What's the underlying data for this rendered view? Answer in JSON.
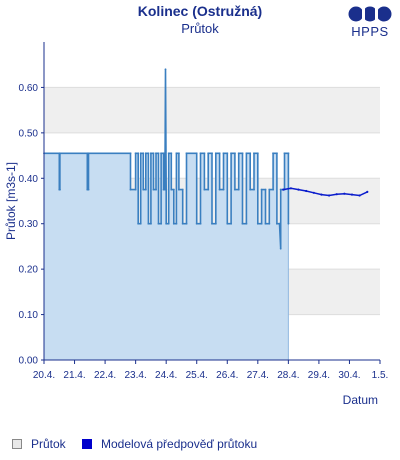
{
  "header": {
    "title": "Kolinec (Ostružná)",
    "subtitle": "Průtok",
    "logo_text": "HPPS"
  },
  "colors": {
    "text": "#1a2f8c",
    "observed": "#3a7fc0",
    "observed_fill": "#c7ddf2",
    "model": "#0a1ccc",
    "band": "#efefef"
  },
  "legend": {
    "observed": "Průtok",
    "model": "Modelová předpověď průtoku"
  },
  "chart_data": {
    "type": "line",
    "xlabel": "Datum",
    "ylabel": "Průtok [m3s-1]",
    "ylim": [
      0,
      0.7
    ],
    "xlim": [
      "2021-04-20",
      "2021-05-01"
    ],
    "x_tick_labels": [
      "20.4.",
      "21.4.",
      "22.4.",
      "23.4.",
      "24.4.",
      "25.4.",
      "26.4.",
      "27.4.",
      "28.4.",
      "29.4.",
      "30.4.",
      "1.5."
    ],
    "y_tick_labels": [
      "0.00",
      "0.10",
      "0.20",
      "0.30",
      "0.40",
      "0.50",
      "0.60"
    ],
    "grid": "horizontal bands",
    "legend_position": "bottom",
    "series": [
      {
        "name": "Průtok",
        "style": "area",
        "x": [
          "2021-04-20T00:00",
          "2021-04-20T12:00",
          "2021-04-20T12:00",
          "2021-04-20T12:30",
          "2021-04-20T12:30",
          "2021-04-21T10:00",
          "2021-04-21T10:00",
          "2021-04-21T11:00",
          "2021-04-21T11:00",
          "2021-04-22T20:00",
          "2021-04-22T20:00",
          "2021-04-23T00:00",
          "2021-04-23T00:00",
          "2021-04-23T02:00",
          "2021-04-23T02:00",
          "2021-04-23T04:00",
          "2021-04-23T04:00",
          "2021-04-23T06:00",
          "2021-04-23T06:00",
          "2021-04-23T08:00",
          "2021-04-23T08:00",
          "2021-04-23T10:00",
          "2021-04-23T10:00",
          "2021-04-23T12:00",
          "2021-04-23T12:00",
          "2021-04-23T14:00",
          "2021-04-23T14:00",
          "2021-04-23T16:00",
          "2021-04-23T16:00",
          "2021-04-23T18:00",
          "2021-04-23T18:00",
          "2021-04-23T20:00",
          "2021-04-23T20:00",
          "2021-04-23T22:00",
          "2021-04-23T22:00",
          "2021-04-23T23:00",
          "2021-04-23T23:30",
          "2021-04-24T00:00",
          "2021-04-24T00:00",
          "2021-04-24T02:00",
          "2021-04-24T02:00",
          "2021-04-24T04:00",
          "2021-04-24T04:00",
          "2021-04-24T06:00",
          "2021-04-24T06:00",
          "2021-04-24T08:00",
          "2021-04-24T08:00",
          "2021-04-24T10:00",
          "2021-04-24T10:00",
          "2021-04-24T13:00",
          "2021-04-24T13:00",
          "2021-04-24T16:00",
          "2021-04-24T16:00",
          "2021-04-25T00:00",
          "2021-04-25T00:00",
          "2021-04-25T03:00",
          "2021-04-25T03:00",
          "2021-04-25T06:00",
          "2021-04-25T06:00",
          "2021-04-25T09:00",
          "2021-04-25T09:00",
          "2021-04-25T12:00",
          "2021-04-25T12:00",
          "2021-04-25T15:00",
          "2021-04-25T15:00",
          "2021-04-25T18:00",
          "2021-04-25T18:00",
          "2021-04-25T21:00",
          "2021-04-25T21:00",
          "2021-04-26T00:00",
          "2021-04-26T00:00",
          "2021-04-26T03:00",
          "2021-04-26T03:00",
          "2021-04-26T06:00",
          "2021-04-26T06:00",
          "2021-04-26T09:00",
          "2021-04-26T09:00",
          "2021-04-26T12:00",
          "2021-04-26T12:00",
          "2021-04-26T15:00",
          "2021-04-26T15:00",
          "2021-04-26T18:00",
          "2021-04-26T18:00",
          "2021-04-26T21:00",
          "2021-04-26T21:00",
          "2021-04-27T00:00",
          "2021-04-27T00:00",
          "2021-04-27T03:00",
          "2021-04-27T03:00",
          "2021-04-27T06:00",
          "2021-04-27T06:00",
          "2021-04-27T09:00",
          "2021-04-27T09:00",
          "2021-04-27T12:00",
          "2021-04-27T12:00",
          "2021-04-27T15:00",
          "2021-04-27T15:00",
          "2021-04-27T17:00",
          "2021-04-27T18:00",
          "2021-04-27T18:00",
          "2021-04-27T21:00",
          "2021-04-27T21:00",
          "2021-04-28T00:00",
          "2021-04-28T00:00"
        ],
        "y": [
          0.455,
          0.455,
          0.375,
          0.375,
          0.455,
          0.455,
          0.375,
          0.375,
          0.455,
          0.455,
          0.375,
          0.375,
          0.455,
          0.455,
          0.3,
          0.3,
          0.455,
          0.455,
          0.375,
          0.375,
          0.455,
          0.455,
          0.3,
          0.3,
          0.455,
          0.455,
          0.375,
          0.375,
          0.455,
          0.455,
          0.3,
          0.3,
          0.455,
          0.455,
          0.375,
          0.375,
          0.64,
          0.375,
          0.3,
          0.3,
          0.455,
          0.455,
          0.375,
          0.375,
          0.3,
          0.3,
          0.455,
          0.455,
          0.375,
          0.375,
          0.3,
          0.3,
          0.455,
          0.455,
          0.3,
          0.3,
          0.455,
          0.455,
          0.375,
          0.375,
          0.455,
          0.455,
          0.3,
          0.3,
          0.455,
          0.455,
          0.375,
          0.375,
          0.455,
          0.455,
          0.3,
          0.3,
          0.455,
          0.455,
          0.375,
          0.375,
          0.455,
          0.455,
          0.3,
          0.3,
          0.455,
          0.455,
          0.375,
          0.375,
          0.455,
          0.455,
          0.3,
          0.3,
          0.375,
          0.375,
          0.3,
          0.3,
          0.375,
          0.375,
          0.455,
          0.455,
          0.3,
          0.3,
          0.245,
          0.375,
          0.375,
          0.455,
          0.455,
          0.3
        ]
      },
      {
        "name": "Modelová předpověď průtoku",
        "style": "line",
        "x": [
          "2021-04-27T20:00",
          "2021-04-28T02:00",
          "2021-04-28T08:00",
          "2021-04-28T14:00",
          "2021-04-28T20:00",
          "2021-04-29T02:00",
          "2021-04-29T08:00",
          "2021-04-29T14:00",
          "2021-04-29T20:00",
          "2021-04-30T02:00",
          "2021-04-30T08:00",
          "2021-04-30T14:00"
        ],
        "y": [
          0.375,
          0.378,
          0.375,
          0.372,
          0.368,
          0.364,
          0.362,
          0.365,
          0.366,
          0.364,
          0.362,
          0.37
        ]
      }
    ]
  }
}
